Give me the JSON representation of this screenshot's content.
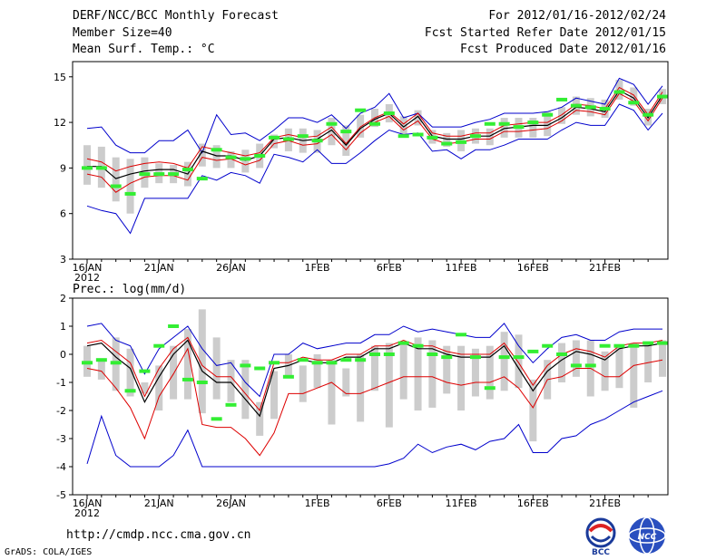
{
  "header": {
    "title": "DERF/NCC/BCC Monthly Forecast",
    "member_size": "Member Size=40",
    "variable": "Mean Surf. Temp.: °C",
    "period": "For 2012/01/16-2012/02/24",
    "started": "Fcst Started Refer Date 2012/01/15",
    "produced": "Fcst Produced Date 2012/01/16"
  },
  "footer": {
    "url": "http://cmdp.ncc.cma.gov.cn",
    "credit": "GrADS: COLA/IGES",
    "logo_left": "BCC",
    "logo_right": "NCC"
  },
  "colors": {
    "envelope": "#0000cc",
    "spread": "#dd0000",
    "mean": "#000000",
    "box": "#cccccc",
    "median": "#33ee33"
  },
  "chart_data": [
    {
      "type": "line",
      "title": "Mean Surf. Temp.: °C",
      "xlabels": [
        "16JAN",
        "21JAN",
        "26JAN",
        "1FEB",
        "6FEB",
        "11FEB",
        "16FEB",
        "21FEB"
      ],
      "xlabel_sub": "2012",
      "xlabel_days": [
        0,
        5,
        10,
        16,
        21,
        26,
        31,
        36
      ],
      "ylim": [
        3,
        16
      ],
      "yticks": [
        3,
        6,
        9,
        12,
        15
      ],
      "ndays": 40,
      "series": {
        "max": [
          11.6,
          11.7,
          10.5,
          10.0,
          10.0,
          10.8,
          10.8,
          11.5,
          10.0,
          12.5,
          11.2,
          11.3,
          10.8,
          11.5,
          12.3,
          12.3,
          12.0,
          12.5,
          11.6,
          12.6,
          13.0,
          13.9,
          12.3,
          12.6,
          11.7,
          11.7,
          11.7,
          12.0,
          12.2,
          12.6,
          12.6,
          12.6,
          12.7,
          13.0,
          13.6,
          13.4,
          13.2,
          14.9,
          14.5,
          13.2,
          14.4
        ],
        "p_high": [
          9.6,
          9.4,
          8.8,
          9.1,
          9.3,
          9.4,
          9.3,
          9.0,
          10.4,
          10.2,
          10.0,
          9.8,
          10.0,
          11.0,
          11.2,
          11.0,
          11.1,
          11.7,
          10.6,
          11.7,
          12.3,
          12.7,
          11.9,
          12.6,
          11.3,
          11.1,
          11.1,
          11.3,
          11.3,
          11.8,
          11.9,
          12.0,
          12.0,
          12.5,
          13.2,
          13.1,
          12.9,
          14.3,
          13.8,
          12.5,
          14.0
        ],
        "mean": [
          9.1,
          9.1,
          8.3,
          8.6,
          8.8,
          8.9,
          8.9,
          8.6,
          10.1,
          9.8,
          9.8,
          9.5,
          9.8,
          10.9,
          11.0,
          10.8,
          10.9,
          11.5,
          10.5,
          11.6,
          12.2,
          12.6,
          11.7,
          12.4,
          11.1,
          10.9,
          10.9,
          11.1,
          11.1,
          11.6,
          11.7,
          11.8,
          11.8,
          12.3,
          13.0,
          12.9,
          12.7,
          14.1,
          13.6,
          12.3,
          13.8
        ],
        "p_low": [
          8.6,
          8.4,
          7.4,
          8.0,
          8.4,
          8.5,
          8.5,
          8.2,
          9.7,
          9.5,
          9.6,
          9.2,
          9.5,
          10.6,
          10.8,
          10.5,
          10.6,
          11.2,
          10.2,
          11.3,
          12.0,
          12.4,
          11.5,
          12.1,
          10.9,
          10.6,
          10.7,
          10.9,
          10.9,
          11.4,
          11.4,
          11.5,
          11.6,
          12.1,
          12.8,
          12.7,
          12.5,
          13.9,
          13.4,
          12.1,
          13.6
        ],
        "min": [
          6.5,
          6.2,
          6.0,
          4.7,
          7.0,
          7.0,
          7.0,
          7.0,
          8.5,
          8.2,
          8.7,
          8.5,
          8.0,
          9.9,
          9.7,
          9.4,
          10.2,
          9.3,
          9.3,
          10.0,
          10.8,
          11.5,
          11.2,
          11.3,
          10.1,
          10.2,
          9.6,
          10.2,
          10.2,
          10.5,
          10.9,
          10.9,
          10.9,
          11.5,
          12.0,
          11.8,
          11.8,
          13.2,
          12.8,
          11.5,
          12.6
        ],
        "box_hi": [
          10.5,
          10.4,
          9.7,
          9.6,
          9.7,
          9.3,
          9.2,
          9.4,
          10.6,
          10.5,
          10.1,
          10.2,
          10.6,
          11.2,
          11.6,
          11.6,
          11.5,
          12.3,
          11.8,
          12.5,
          12.9,
          13.2,
          12.4,
          12.8,
          11.5,
          11.3,
          11.5,
          11.6,
          11.6,
          12.3,
          12.3,
          12.3,
          12.7,
          13.0,
          13.7,
          13.6,
          13.5,
          14.8,
          14.3,
          12.9,
          14.2
        ],
        "box_lo": [
          7.9,
          7.7,
          6.8,
          6.0,
          7.7,
          8.0,
          8.0,
          7.8,
          9.1,
          9.0,
          9.0,
          8.7,
          9.0,
          10.3,
          10.1,
          10.0,
          10.0,
          10.5,
          9.8,
          11.0,
          11.7,
          12.0,
          11.2,
          11.8,
          10.6,
          10.4,
          10.1,
          10.6,
          10.5,
          11.0,
          11.0,
          11.0,
          11.1,
          11.9,
          12.5,
          12.4,
          12.3,
          13.5,
          13.1,
          11.8,
          13.2
        ],
        "median": [
          9.0,
          9.0,
          7.8,
          7.3,
          8.6,
          8.6,
          8.6,
          8.9,
          8.3,
          10.2,
          9.7,
          9.6,
          9.8,
          11.0,
          10.9,
          11.1,
          10.8,
          11.9,
          11.4,
          12.8,
          11.9,
          12.6,
          11.1,
          11.2,
          11.0,
          10.6,
          10.7,
          11.1,
          11.9,
          11.9,
          11.7,
          12.0,
          12.5,
          13.5,
          13.1,
          13.0,
          12.9,
          14.0,
          13.3,
          12.5,
          13.7
        ]
      }
    },
    {
      "type": "line",
      "title": "Prec.: log(mm/d)",
      "xlabels": [
        "16JAN",
        "21JAN",
        "26JAN",
        "1FEB",
        "6FEB",
        "11FEB",
        "16FEB",
        "21FEB"
      ],
      "xlabel_sub": "2012",
      "xlabel_days": [
        0,
        5,
        10,
        16,
        21,
        26,
        31,
        36
      ],
      "ylim": [
        -5,
        2
      ],
      "yticks": [
        -5,
        -4,
        -3,
        -2,
        -1,
        0,
        1,
        2
      ],
      "ndays": 40,
      "series": {
        "max": [
          1.0,
          1.1,
          0.5,
          0.3,
          -0.7,
          0.2,
          0.6,
          1.0,
          0.2,
          -0.4,
          -0.3,
          -1.0,
          -1.5,
          0.0,
          0.0,
          0.4,
          0.2,
          0.3,
          0.4,
          0.4,
          0.7,
          0.7,
          1.0,
          0.8,
          0.9,
          0.8,
          0.7,
          0.6,
          0.6,
          1.1,
          0.3,
          -0.3,
          0.2,
          0.6,
          0.7,
          0.5,
          0.5,
          0.8,
          0.9,
          0.9,
          0.9
        ],
        "p_high": [
          0.4,
          0.5,
          0.1,
          -0.3,
          -1.5,
          -0.5,
          0.2,
          0.6,
          -0.4,
          -0.8,
          -0.8,
          -1.4,
          -2.0,
          -0.3,
          -0.3,
          -0.1,
          -0.2,
          -0.2,
          0.0,
          0.0,
          0.3,
          0.3,
          0.5,
          0.3,
          0.3,
          0.1,
          0.0,
          0.0,
          0.0,
          0.4,
          -0.3,
          -1.1,
          -0.4,
          0.0,
          0.2,
          0.1,
          -0.1,
          0.3,
          0.4,
          0.4,
          0.5
        ],
        "mean": [
          0.3,
          0.4,
          -0.1,
          -0.5,
          -1.7,
          -0.8,
          0.0,
          0.5,
          -0.6,
          -1.0,
          -1.0,
          -1.6,
          -2.2,
          -0.5,
          -0.4,
          -0.2,
          -0.3,
          -0.3,
          -0.1,
          -0.1,
          0.2,
          0.2,
          0.4,
          0.2,
          0.2,
          0.0,
          -0.1,
          -0.1,
          -0.1,
          0.3,
          -0.5,
          -1.3,
          -0.6,
          -0.2,
          0.1,
          0.0,
          -0.2,
          0.2,
          0.3,
          0.3,
          0.4
        ],
        "p_low": [
          -0.5,
          -0.6,
          -1.2,
          -1.9,
          -3.0,
          -1.5,
          -0.7,
          0.2,
          -2.5,
          -2.6,
          -2.6,
          -3.0,
          -3.6,
          -2.8,
          -1.4,
          -1.4,
          -1.2,
          -1.0,
          -1.4,
          -1.4,
          -1.2,
          -1.0,
          -0.8,
          -0.8,
          -0.8,
          -1.0,
          -1.1,
          -1.0,
          -1.0,
          -0.8,
          -1.2,
          -1.9,
          -0.9,
          -0.8,
          -0.5,
          -0.5,
          -0.8,
          -0.8,
          -0.4,
          -0.3,
          -0.2
        ],
        "min": [
          -3.9,
          -2.2,
          -3.6,
          -4.0,
          -4.0,
          -4.0,
          -3.6,
          -2.7,
          -4.0,
          -4.0,
          -4.0,
          -4.0,
          -4.0,
          -4.0,
          -4.0,
          -4.0,
          -4.0,
          -4.0,
          -4.0,
          -4.0,
          -4.0,
          -3.9,
          -3.7,
          -3.2,
          -3.5,
          -3.3,
          -3.2,
          -3.4,
          -3.1,
          -3.0,
          -2.5,
          -3.5,
          -3.5,
          -3.0,
          -2.9,
          -2.5,
          -2.3,
          -2.0,
          -1.7,
          -1.5,
          -1.3
        ],
        "box_hi": [
          0.3,
          -0.2,
          0.6,
          0.2,
          -1.0,
          -0.4,
          0.3,
          0.9,
          1.6,
          0.6,
          -0.2,
          -0.2,
          -1.7,
          -0.6,
          0.0,
          -0.4,
          0.0,
          -0.2,
          -0.5,
          0.0,
          0.3,
          0.4,
          0.4,
          0.6,
          0.5,
          0.3,
          0.3,
          0.2,
          0.3,
          0.8,
          0.7,
          -0.9,
          -0.2,
          0.4,
          0.5,
          0.5,
          0.1,
          0.3,
          0.4,
          0.4,
          0.5
        ],
        "box_lo": [
          -0.8,
          -0.9,
          -1.3,
          -1.5,
          -1.4,
          -2.0,
          -1.6,
          -1.6,
          -2.1,
          -1.6,
          -1.7,
          -2.3,
          -2.9,
          -2.3,
          -0.8,
          -1.7,
          -1.2,
          -2.5,
          -1.5,
          -2.4,
          -1.3,
          -2.6,
          -1.6,
          -2.0,
          -1.9,
          -1.4,
          -2.0,
          -1.5,
          -1.6,
          -1.3,
          -1.2,
          -3.1,
          -1.6,
          -1.0,
          -0.8,
          -1.5,
          -1.3,
          -1.2,
          -1.9,
          -1.0,
          -0.8
        ],
        "median": [
          -0.3,
          -0.2,
          -0.3,
          -1.3,
          -0.6,
          0.3,
          1.0,
          -0.9,
          -1.0,
          -2.3,
          -1.8,
          -0.4,
          -0.5,
          -0.3,
          -0.8,
          -0.2,
          -0.3,
          -0.3,
          -0.2,
          -0.2,
          0.0,
          0.0,
          0.4,
          0.3,
          0.0,
          -0.1,
          0.7,
          -0.1,
          -1.2,
          -0.1,
          -0.1,
          0.1,
          0.3,
          0.0,
          -0.4,
          -0.4,
          0.3,
          0.3,
          0.3,
          0.4,
          0.4
        ]
      }
    }
  ]
}
